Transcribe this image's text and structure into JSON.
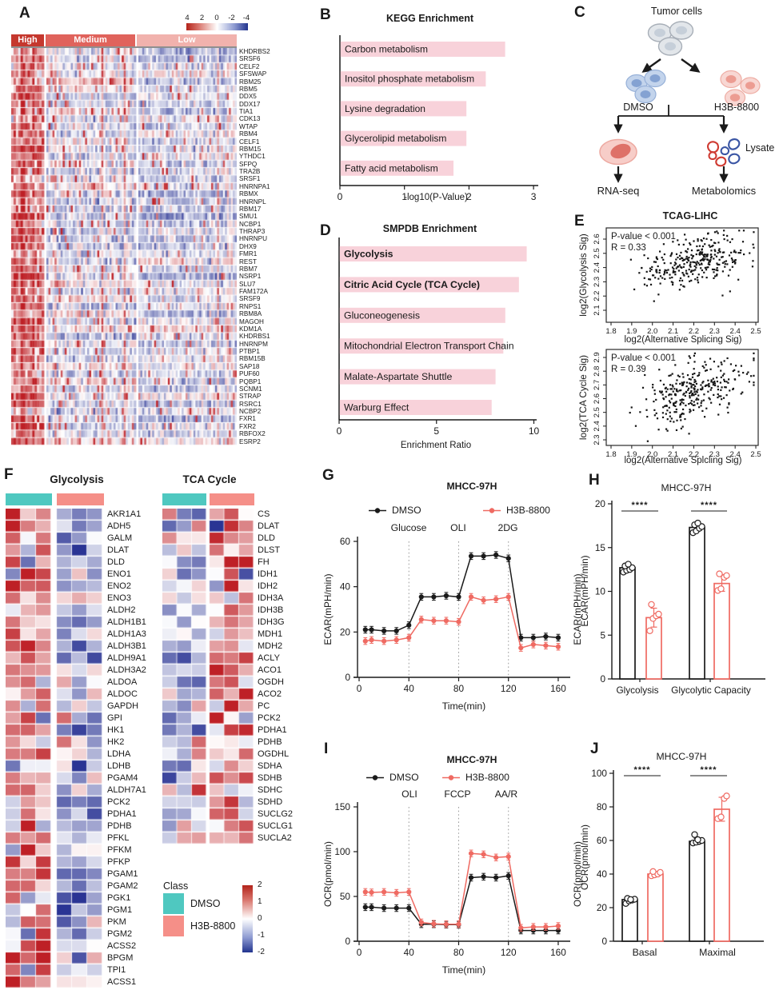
{
  "panel_labels": {
    "A": "A",
    "B": "B",
    "C": "C",
    "D": "D",
    "E": "E",
    "F": "F",
    "G": "G",
    "H": "H",
    "I": "I",
    "J": "J"
  },
  "panelC": {
    "title": "Tumor cells",
    "dmso": "DMSO",
    "h3b": "H3B-8800",
    "lysate": "Lysate",
    "rna_seq": "RNA-seq",
    "metabolomics": "Metabolomics"
  },
  "chart_data": [
    {
      "panel": "A",
      "type": "heatmap",
      "groups": [
        {
          "label": "High",
          "color": "#c5382e",
          "n_samples": 14
        },
        {
          "label": "Medium",
          "color": "#e0635c",
          "n_samples": 44
        },
        {
          "label": "Low",
          "color": "#f1b2ad",
          "n_samples": 50
        }
      ],
      "colorbar_ticks": [
        "4",
        "2",
        "0",
        "-2",
        "-4"
      ],
      "genes": [
        "KHDRBS2",
        "SRSF6",
        "CELF2",
        "SFSWAP",
        "RBM25",
        "RBM5",
        "DDX5",
        "DDX17",
        "TIA1",
        "CDK13",
        "WTAP",
        "RBM4",
        "CELF1",
        "RBM15",
        "YTHDC1",
        "SFPQ",
        "TRA2B",
        "SRSF1",
        "HNRNPA1",
        "RBMX",
        "HNRNPL",
        "RBM17",
        "SMU1",
        "NCBP1",
        "THRAP3",
        "HNRNPU",
        "DHX9",
        "FMR1",
        "REST",
        "RBM7",
        "NSRP1",
        "SLU7",
        "FAM172A",
        "SRSF9",
        "RNPS1",
        "RBM8A",
        "MAGOH",
        "KDM1A",
        "KHDRBS1",
        "HNRNPM",
        "PTBP1",
        "RBM15B",
        "SAP18",
        "PUF60",
        "PQBP1",
        "SCNM1",
        "STRAP",
        "RSRC1",
        "NCBP2",
        "FXR1",
        "FXR2",
        "RBFOX2",
        "ESRP2"
      ]
    },
    {
      "panel": "B",
      "type": "bar",
      "orientation": "horizontal",
      "title": "KEGG Enrichment",
      "categories": [
        "Carbon metabolism",
        "Inositol phosphate metabolism",
        "Lysine degradation",
        "Glycerolipid metabolism",
        "Fatty acid metabolism"
      ],
      "values": [
        2.55,
        2.25,
        1.95,
        1.95,
        1.75
      ],
      "xlabel": "-log10(P-Value)",
      "xlim": [
        0,
        3
      ],
      "xticks": [
        0,
        1,
        2,
        3
      ],
      "bar_color": "#f8d2da"
    },
    {
      "panel": "D",
      "type": "bar",
      "orientation": "horizontal",
      "title": "SMPDB Enrichment",
      "categories": [
        "Glycolysis",
        "Citric Acid Cycle (TCA Cycle)",
        "Gluconeogenesis",
        "Mitochondrial Electron Transport Chain",
        "Malate-Aspartate Shuttle",
        "Warburg Effect"
      ],
      "values": [
        9.6,
        9.2,
        8.5,
        8.4,
        8.0,
        7.8
      ],
      "bold_categories": [
        "Glycolysis",
        "Citric Acid Cycle (TCA Cycle)"
      ],
      "xlabel": "Enrichment Ratio",
      "xlim": [
        0,
        10
      ],
      "xticks": [
        0,
        5,
        10
      ],
      "bar_color": "#f8d2da"
    },
    {
      "panel": "E",
      "type": "scatter",
      "title": "TCAG-LIHC",
      "xlabel": "log2(Alternative Splicing Sig)",
      "ylabel": "log2(Glycolysis Sig)",
      "annotation": [
        "P-value < 0.001",
        "R = 0.33"
      ],
      "R": 0.33,
      "p_value": "< 0.001",
      "xticks": [
        1.8,
        1.9,
        2.0,
        2.1,
        2.2,
        2.3,
        2.4,
        2.5
      ],
      "yticks": [
        2.1,
        2.2,
        2.3,
        2.4,
        2.5,
        2.6
      ],
      "n_points": 310
    },
    {
      "panel": "E",
      "type": "scatter",
      "title": "TCAG-LIHC",
      "xlabel": "log2(Alternative Splcling Sig)",
      "ylabel": "log2(TCA Cycle Sig)",
      "annotation": [
        "P-value < 0.001",
        "R = 0.39"
      ],
      "R": 0.39,
      "p_value": "< 0.001",
      "xticks": [
        1.8,
        1.9,
        2.0,
        2.1,
        2.2,
        2.3,
        2.4,
        2.5
      ],
      "yticks": [
        2.3,
        2.4,
        2.5,
        2.6,
        2.7,
        2.8,
        2.9
      ],
      "n_points": 310
    },
    {
      "panel": "F",
      "type": "heatmap",
      "title": "Glycolysis",
      "legend_title": "Class",
      "classes": [
        {
          "label": "DMSO",
          "color": "#4fc8c0"
        },
        {
          "label": "H3B-8800",
          "color": "#f58f88"
        }
      ],
      "colorbar_ticks": [
        "2",
        "1",
        "0",
        "-1",
        "-2"
      ],
      "genes": [
        "AKR1A1",
        "ADH5",
        "GALM",
        "DLAT",
        "DLD",
        "ENO1",
        "ENO2",
        "ENO3",
        "ALDH2",
        "ALDH1B1",
        "ALDH1A3",
        "ALDH3B1",
        "ALDH9A1",
        "ALDH3A2",
        "ALDOA",
        "ALDOC",
        "GAPDH",
        "GPI",
        "HK1",
        "HK2",
        "LDHA",
        "LDHB",
        "PGAM4",
        "ALDH7A1",
        "PCK2",
        "PDHA1",
        "PDHB",
        "PFKL",
        "PFKM",
        "PFKP",
        "PGAM1",
        "PGAM2",
        "PGK1",
        "PGM1",
        "PKM",
        "PGM2",
        "ACSS2",
        "BPGM",
        "TPI1",
        "ACSS1"
      ]
    },
    {
      "panel": "F",
      "type": "heatmap",
      "title": "TCA Cycle",
      "genes": [
        "CS",
        "DLAT",
        "DLD",
        "DLST",
        "FH",
        "IDH1",
        "IDH2",
        "IDH3A",
        "IDH3B",
        "IDH3G",
        "MDH1",
        "MDH2",
        "ACLY",
        "ACO1",
        "OGDH",
        "ACO2",
        "PC",
        "PCK2",
        "PDHA1",
        "PDHB",
        "OGDHL",
        "SDHA",
        "SDHB",
        "SDHC",
        "SDHD",
        "SUCLG2",
        "SUCLG1",
        "SUCLA2"
      ]
    },
    {
      "panel": "G",
      "type": "line",
      "title": "MHCC-97H",
      "xlabel": "Time(min)",
      "ylabel": "ECAR(mPH/min)",
      "ylabel_right": "ECAR(mPH/min)",
      "xticks": [
        0,
        40,
        80,
        120,
        160
      ],
      "yticks": [
        0,
        20,
        40,
        60
      ],
      "injections": [
        {
          "x": 40,
          "label": "Glucose"
        },
        {
          "x": 80,
          "label": "OLI"
        },
        {
          "x": 120,
          "label": "2DG"
        }
      ],
      "x": [
        5,
        10,
        20,
        30,
        40,
        50,
        60,
        70,
        80,
        90,
        100,
        110,
        120,
        130,
        140,
        150,
        160
      ],
      "series": [
        {
          "name": "DMSO",
          "color": "#1a1a1a",
          "values": [
            21,
            21,
            20.5,
            20.5,
            23,
            35.5,
            35.5,
            36,
            35.5,
            53.5,
            53.5,
            54,
            52.5,
            17.5,
            17.5,
            18,
            17.5
          ]
        },
        {
          "name": "H3B-8800",
          "color": "#ef6a62",
          "values": [
            16,
            16.5,
            16,
            16.5,
            17.5,
            25.5,
            25,
            25,
            24.5,
            35.5,
            34,
            34.5,
            35.5,
            13,
            14.5,
            14,
            13.5
          ]
        }
      ]
    },
    {
      "panel": "H",
      "type": "bar",
      "title": "MHCC-97H",
      "ylabel": "ECAR(mPH/min)",
      "yticks": [
        0,
        5,
        10,
        15,
        20
      ],
      "categories": [
        "Glycolysis",
        "Glycolytic Capacity"
      ],
      "series": [
        {
          "name": "DMSO",
          "color": "#1a1a1a",
          "values": [
            12.7,
            17.3
          ],
          "points": [
            [
              12.2,
              12.4,
              12.5,
              12.7,
              12.9,
              13.1
            ],
            [
              16.7,
              16.9,
              17.2,
              17.4,
              17.6,
              17.8
            ]
          ]
        },
        {
          "name": "H3B-8800",
          "color": "#ef6a62",
          "values": [
            7.0,
            10.9
          ],
          "points": [
            [
              5.5,
              6.9,
              7.2,
              7.4,
              8.5
            ],
            [
              10.1,
              10.3,
              11.6,
              11.8,
              12.0
            ]
          ]
        }
      ],
      "significance": [
        "****",
        "****"
      ]
    },
    {
      "panel": "I",
      "type": "line",
      "title": "MHCC-97H",
      "xlabel": "Time(min)",
      "ylabel": "OCR(pmol/min)",
      "ylabel_right": "OCR(pmol/min)",
      "xticks": [
        0,
        40,
        80,
        120,
        160
      ],
      "yticks": [
        0,
        50,
        100,
        150
      ],
      "injections": [
        {
          "x": 40,
          "label": "OLI"
        },
        {
          "x": 80,
          "label": "FCCP"
        },
        {
          "x": 120,
          "label": "AA/R"
        }
      ],
      "x": [
        5,
        10,
        20,
        30,
        40,
        50,
        60,
        70,
        80,
        90,
        100,
        110,
        120,
        130,
        140,
        150,
        160
      ],
      "series": [
        {
          "name": "DMSO",
          "color": "#1a1a1a",
          "values": [
            38,
            38,
            37,
            37,
            37,
            19,
            19,
            18.5,
            18.5,
            71,
            72,
            71,
            73,
            12,
            12,
            12,
            12
          ]
        },
        {
          "name": "H3B-8800",
          "color": "#ef6a62",
          "values": [
            55,
            54.5,
            55,
            54,
            55,
            21,
            19.5,
            19,
            19,
            98,
            97,
            93.5,
            94.5,
            15,
            16,
            16,
            17
          ]
        }
      ]
    },
    {
      "panel": "J",
      "type": "bar",
      "title": "MHCC-97H",
      "ylabel": "OCR(pmol/min)",
      "yticks": [
        0,
        20,
        40,
        60,
        80,
        100
      ],
      "categories": [
        "Basal",
        "Maximal"
      ],
      "series": [
        {
          "name": "DMSO",
          "color": "#1a1a1a",
          "values": [
            24.8,
            59.5
          ],
          "points": [
            [
              22.5,
              24,
              24.5,
              25,
              25.5,
              24.8
            ],
            [
              58.5,
              59,
              59.5,
              60,
              63.5,
              60.5
            ]
          ]
        },
        {
          "name": "H3B-8800",
          "color": "#ef6a62",
          "values": [
            40,
            78.6
          ],
          "points": [
            [
              39,
              39.5,
              40,
              41,
              41.5
            ],
            [
              73,
              74,
              85,
              86.5
            ]
          ]
        }
      ],
      "significance": [
        "****",
        "****"
      ]
    }
  ]
}
